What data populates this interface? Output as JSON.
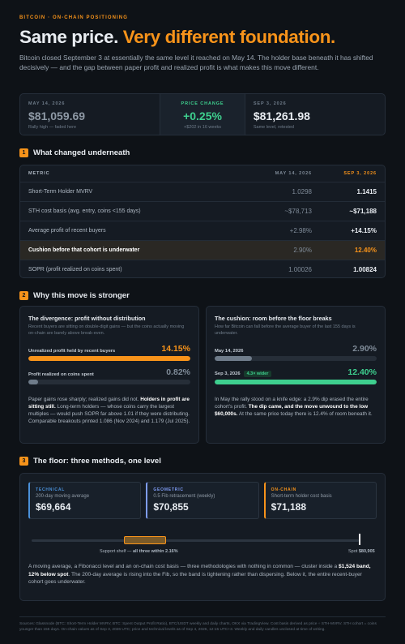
{
  "header": {
    "eyebrow": "BITCOIN · ON-CHAIN POSITIONING",
    "title_white": "Same price.",
    "title_orange": "Very different foundation.",
    "intro": "Bitcoin closed September 3 at essentially the same level it reached on May 14. The holder base beneath it has shifted decisively — and the gap between paper profit and realized profit is what makes this move different."
  },
  "stats": [
    {
      "label": "MAY 14, 2026",
      "value": "$81,059.69",
      "note": "Rally high — faded here"
    },
    {
      "label": "PRICE CHANGE",
      "value": "+0.25%",
      "note": "+$202 in 16 weeks"
    },
    {
      "label": "SEP 3, 2026",
      "value": "$81,261.98",
      "note": "Same level, retested"
    }
  ],
  "sections": [
    {
      "number": "1",
      "title": "What changed underneath"
    },
    {
      "number": "2",
      "title": "Why this move is stronger"
    },
    {
      "number": "3",
      "title": "The floor: three methods, one level"
    }
  ],
  "table": {
    "header": [
      "METRIC",
      "MAY 14, 2026",
      "SEP 3, 2026"
    ],
    "rows": [
      [
        "Short-Term Holder MVRV",
        "1.0298",
        "1.1415"
      ],
      [
        "STH cost basis (avg. entry, coins <155 days)",
        "~$78,713",
        "~$71,188"
      ],
      [
        "Average profit of recent buyers",
        "+2.98%",
        "+14.15%"
      ],
      [
        "Cushion before that cohort is underwater",
        "2.90%",
        "12.40%"
      ],
      [
        "SOPR (profit realized on coins spent)",
        "1.00026",
        "1.00824"
      ]
    ]
  },
  "cards": [
    {
      "title": "The divergence: profit without distribution",
      "desc": "Recent buyers are sitting on double-digit gains — but the coins actually moving on-chain are barely above break-even.",
      "bars": [
        {
          "label": "Unrealized profit held by recent buyers",
          "value": "14.15%"
        },
        {
          "label": "Profit realized on coins spent",
          "value": "0.82%"
        }
      ],
      "body": [
        {
          "text": "Paper gains rose sharply; realized gains did not. "
        },
        {
          "text": "Holders in profit are sitting still.",
          "bold": true
        },
        {
          "text": " Long-term holders — whose coins carry the largest multiples — would push SOPR far above 1.01 if they were distributing. Comparable breakouts printed 1.086 (Nov 2024) and 1.179 (Jul 2025)."
        }
      ]
    },
    {
      "title": "The cushion: room before the floor breaks",
      "desc": "How far Bitcoin can fall before the average buyer of the last 155 days is underwater.",
      "bars": [
        {
          "label": "May 14, 2026",
          "value": "2.90%"
        },
        {
          "label": "Sep 3, 2026",
          "tag": "4.3× wider",
          "value": "12.40%"
        }
      ],
      "body": [
        {
          "text": "In May the rally stood on a knife edge: a 2.9% dip erased the entire cohort's profit. "
        },
        {
          "text": "The dip came, and the move unwound to the low $60,000s.",
          "bold": true
        },
        {
          "text": " At the same price today there is 12.4% of room beneath it."
        }
      ]
    }
  ],
  "floor": {
    "methods": [
      {
        "tag": "TECHNICAL",
        "desc": "200-day moving average",
        "value": "$69,664"
      },
      {
        "tag": "GEOMETRIC",
        "desc": "0.5 Fib retracement (weekly)",
        "value": "$70,855"
      },
      {
        "tag": "ON-CHAIN",
        "desc": "Short-term holder cost basis",
        "value": "$71,188"
      }
    ],
    "band_label": [
      {
        "text": "Support shelf — "
      },
      {
        "text": "all three within 2.16%",
        "bold": true
      }
    ],
    "spot_label": [
      {
        "text": "Spot "
      },
      {
        "text": "$80,905",
        "bold": true
      }
    ],
    "body": [
      {
        "text": "A moving average, a Fibonacci level and an on-chain cost basis — three methodologies with nothing in common — cluster inside a "
      },
      {
        "text": "$1,524 band, 12% below spot",
        "bold": true
      },
      {
        "text": ". The 200-day average is rising into the Fib, so the band is tightening rather than dispersing. Below it, the entire recent-buyer cohort goes underwater."
      }
    ]
  },
  "footer": "Sources: Glassnode (BTC: Short-Term Holder MVRV, BTC: Spent Output Profit Ratio), BTC/USDT weekly and daily charts, OKX via TradingView. Cost basis derived as price ÷ STH-MVRV. STH cohort = coins younger than 155 days. On-chain values as of Sep 3, 2026 UTC; price and technical levels as of Sep 4, 2026, 12:15 UTC+3. Weekly and daily candles unclosed at time of writing."
}
